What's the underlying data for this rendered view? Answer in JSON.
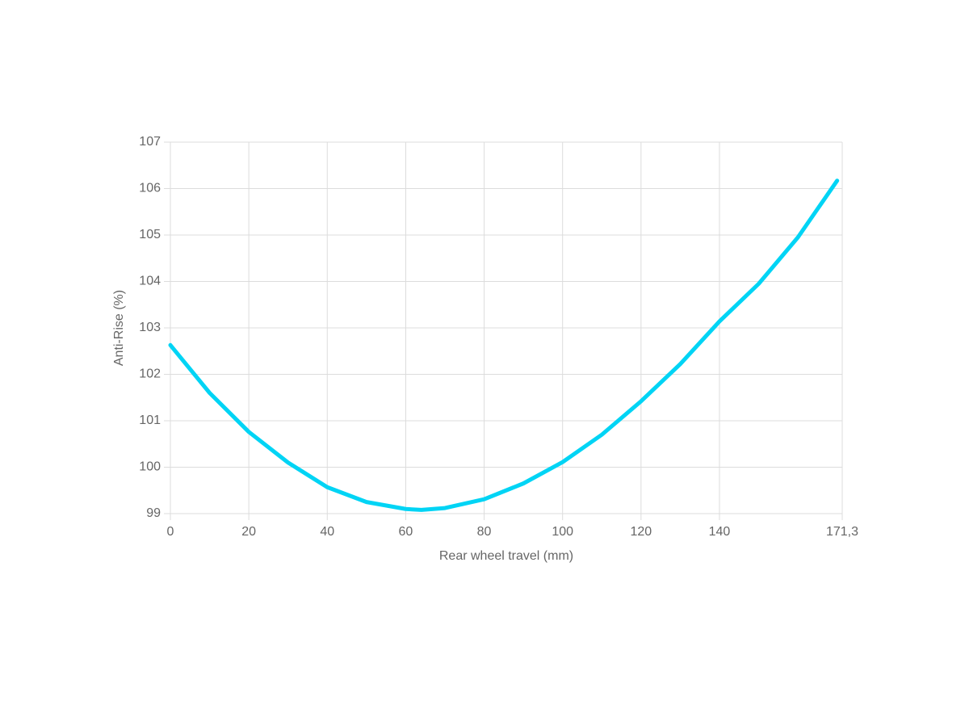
{
  "chart_data": {
    "type": "line",
    "x_label": "Rear wheel travel (mm)",
    "y_label": "Anti-Rise (%)",
    "x": [
      0,
      10,
      20,
      30,
      40,
      50,
      60,
      64,
      70,
      80,
      90,
      100,
      110,
      120,
      130,
      140,
      150,
      160,
      170
    ],
    "series": [
      {
        "name": "Anti-Rise",
        "color": "#00d4f5",
        "values": [
          102.63,
          101.6,
          100.76,
          100.1,
          99.57,
          99.25,
          99.1,
          99.08,
          99.12,
          99.31,
          99.65,
          100.11,
          100.7,
          101.42,
          102.22,
          103.14,
          103.95,
          104.95,
          106.17
        ]
      }
    ],
    "xlim": [
      0,
      171.3
    ],
    "xticks": [
      0,
      20,
      40,
      60,
      80,
      100,
      120,
      140,
      {
        "value": 171.3,
        "label": "171,3"
      }
    ],
    "ylim": [
      99,
      107
    ],
    "yticks": [
      99,
      100,
      101,
      102,
      103,
      104,
      105,
      106,
      107
    ],
    "grid": true
  }
}
